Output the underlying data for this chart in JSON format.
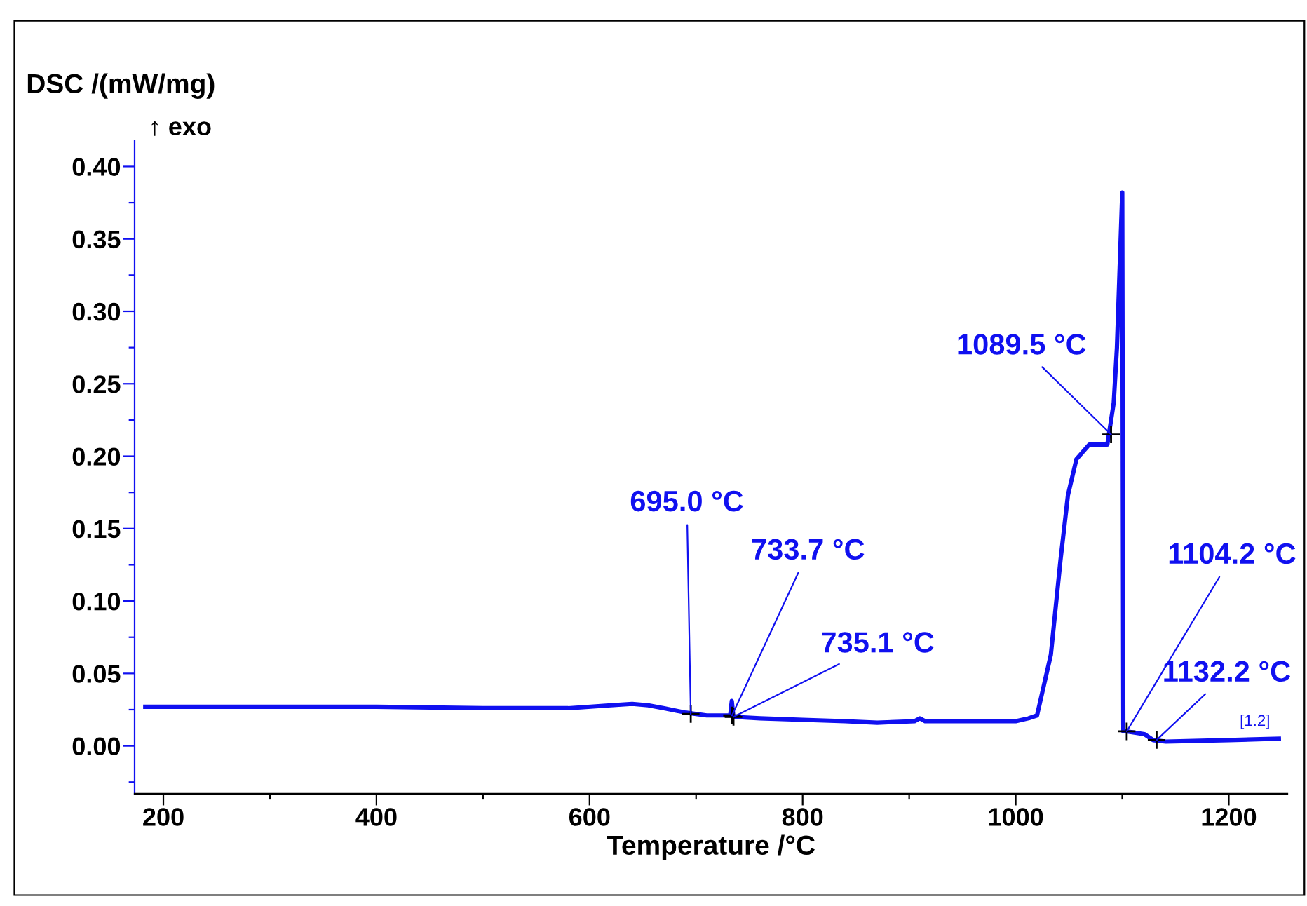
{
  "chart_data": {
    "type": "line",
    "xlabel": "Temperature /°C",
    "ylabel": "DSC /(mW/mg)",
    "x": [
      183,
      250,
      300,
      400,
      500,
      580,
      620,
      640,
      655,
      670,
      690,
      710,
      732,
      733.5,
      735,
      760,
      800,
      840,
      870,
      905,
      910,
      915,
      960,
      1000,
      1012,
      1020,
      1033,
      1042,
      1049,
      1057,
      1069,
      1086,
      1092,
      1095,
      1100,
      1101,
      1104,
      1121,
      1129,
      1141,
      1200,
      1247
    ],
    "series": [
      {
        "color": "#1010f0",
        "values": [
          0.027,
          0.027,
          0.027,
          0.027,
          0.026,
          0.026,
          0.028,
          0.029,
          0.028,
          0.026,
          0.023,
          0.021,
          0.021,
          0.031,
          0.02,
          0.019,
          0.018,
          0.017,
          0.016,
          0.017,
          0.019,
          0.017,
          0.017,
          0.017,
          0.019,
          0.021,
          0.063,
          0.128,
          0.173,
          0.198,
          0.208,
          0.208,
          0.237,
          0.275,
          0.382,
          0.01,
          0.01,
          0.008,
          0.004,
          0.003,
          0.004,
          0.005
        ]
      }
    ],
    "xlim": [
      173,
      1255
    ],
    "ylim": [
      -0.033,
      0.418
    ],
    "xticks": [
      200,
      {
        "value": 300,
        "label": null
      },
      400,
      {
        "value": 500,
        "label": null
      },
      600,
      {
        "value": 700,
        "label": null
      },
      800,
      {
        "value": 900,
        "label": null
      },
      1000,
      {
        "value": 1100,
        "label": null
      },
      1200
    ],
    "yticks": [
      {
        "value": -0.025,
        "label": null
      },
      {
        "value": 0,
        "label": "0.00"
      },
      {
        "value": 0.025,
        "label": null
      },
      {
        "value": 0.05,
        "label": "0.05"
      },
      {
        "value": 0.075,
        "label": null
      },
      {
        "value": 0.1,
        "label": "0.10"
      },
      {
        "value": 0.125,
        "label": null
      },
      {
        "value": 0.15,
        "label": "0.15"
      },
      {
        "value": 0.175,
        "label": null
      },
      {
        "value": 0.2,
        "label": "0.20"
      },
      {
        "value": 0.225,
        "label": null
      },
      {
        "value": 0.25,
        "label": "0.25"
      },
      {
        "value": 0.275,
        "label": null
      },
      {
        "value": 0.3,
        "label": "0.30"
      },
      {
        "value": 0.325,
        "label": null
      },
      {
        "value": 0.35,
        "label": "0.35"
      },
      {
        "value": 0.375,
        "label": null
      },
      {
        "value": 0.4,
        "label": "0.40"
      }
    ],
    "grid": false,
    "legend": false,
    "marker": "none",
    "line_style": "solid",
    "annotations": [
      {
        "text": "695.0 °C",
        "x": 695.0,
        "y": 0.022
      },
      {
        "text": "733.7 °C",
        "x": 733.7,
        "y": 0.021
      },
      {
        "text": "735.1 °C",
        "x": 735.1,
        "y": 0.02
      },
      {
        "text": "1089.5 °C",
        "x": 1089.5,
        "y": 0.215
      },
      {
        "text": "1104.2 °C",
        "x": 1104.2,
        "y": 0.01
      },
      {
        "text": "1132.2 °C",
        "x": 1132.2,
        "y": 0.004
      },
      "↑ exo",
      "[1.2]"
    ]
  }
}
